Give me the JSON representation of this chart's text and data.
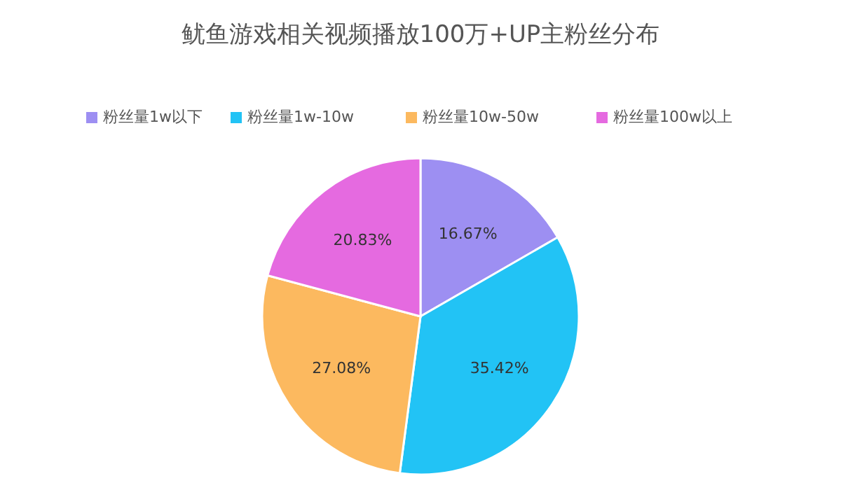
{
  "chart_data": {
    "type": "pie",
    "title": "鱿鱼游戏相关视频播放100万+UP主粉丝分布",
    "categories": [
      "粉丝量1w以下",
      "粉丝量1w-10w",
      "粉丝量10w-50w",
      "粉丝量100w以上"
    ],
    "values": [
      16.67,
      35.42,
      27.08,
      20.83
    ],
    "colors": [
      "#9d8ff2",
      "#22c3f5",
      "#fcb95f",
      "#e56ae0"
    ],
    "value_labels": [
      "16.67%",
      "35.42%",
      "27.08%",
      "20.83%"
    ],
    "legend": "top"
  }
}
